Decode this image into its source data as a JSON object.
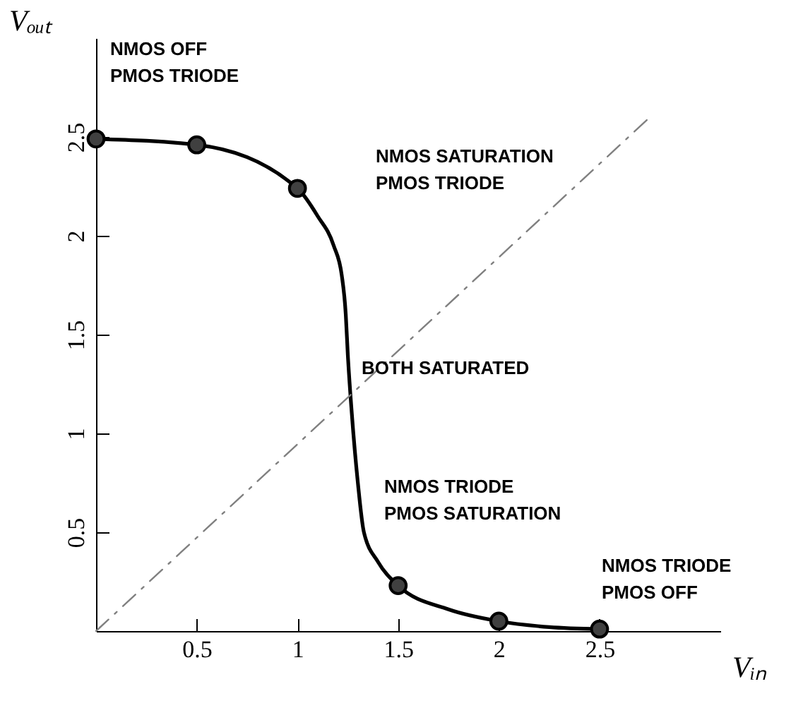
{
  "chart_data": {
    "type": "line",
    "xlabel": "Vᵢₙ",
    "ylabel": "Vₒᵤₜ",
    "xlim": [
      0,
      3.1
    ],
    "ylim": [
      0,
      3
    ],
    "xticks": [
      0.5,
      1,
      1.5,
      2,
      2.5
    ],
    "yticks": [
      0.5,
      1,
      1.5,
      2,
      2.5
    ],
    "grid": false,
    "series": [
      {
        "color": "#000000",
        "marker": "none",
        "x": [
          0,
          0.5,
          1,
          1.1,
          1.18,
          1.22,
          1.24,
          1.25,
          1.27,
          1.3,
          1.33,
          1.4,
          1.5,
          1.75,
          2,
          2.25,
          2.5
        ],
        "values": [
          2.49,
          2.46,
          2.24,
          2.1,
          1.95,
          1.8,
          1.6,
          1.4,
          1.1,
          0.75,
          0.5,
          0.35,
          0.23,
          0.11,
          0.05,
          0.02,
          0.01
        ]
      },
      {
        "type": "scatter",
        "color": "#404040",
        "marker": "circle",
        "x": [
          0,
          0.5,
          1,
          1.5,
          2,
          2.5
        ],
        "values": [
          2.49,
          2.46,
          2.24,
          0.23,
          0.05,
          0.01
        ]
      },
      {
        "color": "#808080",
        "marker": "none",
        "line_style": "dashed",
        "x": [
          0,
          2.75
        ],
        "values": [
          0,
          2.6
        ]
      }
    ],
    "annotations": [
      "NMOS OFF\nPMOS TRIODE",
      "NMOS SATURATION\nPMOS TRIODE",
      "BOTH SATURATED",
      "NMOS TRIODE\nPMOS SATURATION",
      "NMOS TRIODE\nPMOS OFF"
    ]
  }
}
